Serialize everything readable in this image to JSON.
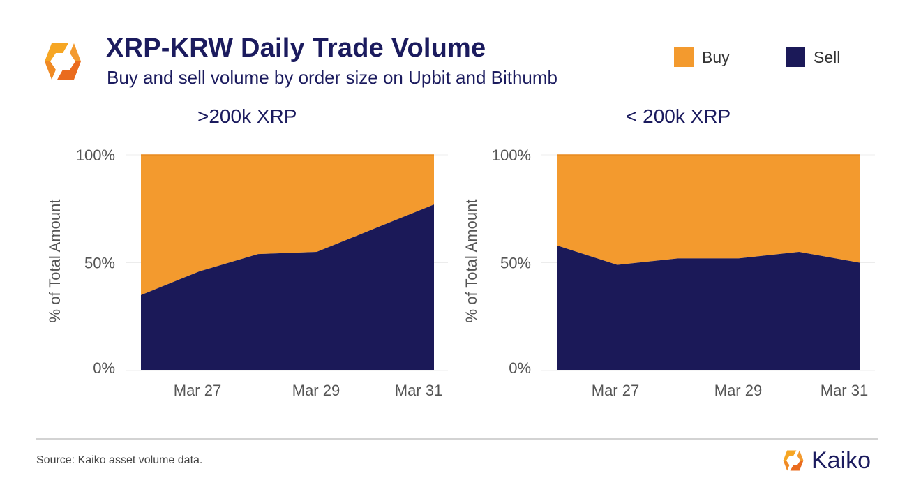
{
  "header": {
    "title": "XRP-KRW Daily Trade Volume",
    "subtitle": "Buy and sell volume by order size on Upbit and Bithumb"
  },
  "legend": [
    {
      "label": "Buy",
      "color": "#f39a2e"
    },
    {
      "label": "Sell",
      "color": "#1b1958"
    }
  ],
  "colors": {
    "buy": "#f39a2e",
    "sell": "#1b1958",
    "title": "#1b1b5e"
  },
  "footer": {
    "source": "Source: Kaiko asset volume data.",
    "brand": "Kaiko"
  },
  "chart_data": [
    {
      "type": "area",
      "title": ">200k XRP",
      "ylabel": "% of Total Amount",
      "x": [
        "2021-03-26",
        "2021-03-27",
        "2021-03-28",
        "2021-03-29",
        "2021-03-30",
        "2021-03-31"
      ],
      "xticks": [
        "Mar 27",
        "Mar 29",
        "Mar 31"
      ],
      "yticks": [
        "100%",
        "50%",
        "0%"
      ],
      "ylim": [
        0,
        100
      ],
      "stacked": true,
      "series": [
        {
          "name": "Sell",
          "values": [
            35,
            46,
            54,
            55,
            66,
            77
          ]
        },
        {
          "name": "Buy",
          "values": [
            65,
            54,
            46,
            45,
            34,
            23
          ]
        }
      ]
    },
    {
      "type": "area",
      "title": "< 200k XRP",
      "ylabel": "% of Total Amount",
      "x": [
        "2021-03-26",
        "2021-03-27",
        "2021-03-28",
        "2021-03-29",
        "2021-03-30",
        "2021-03-31"
      ],
      "xticks": [
        "Mar 27",
        "Mar 29",
        "Mar 31"
      ],
      "yticks": [
        "100%",
        "50%",
        "0%"
      ],
      "ylim": [
        0,
        100
      ],
      "stacked": true,
      "series": [
        {
          "name": "Sell",
          "values": [
            58,
            49,
            52,
            52,
            55,
            50
          ]
        },
        {
          "name": "Buy",
          "values": [
            42,
            51,
            48,
            48,
            45,
            50
          ]
        }
      ]
    }
  ]
}
